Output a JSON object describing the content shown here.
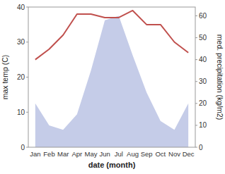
{
  "chart_data": {
    "type": "line",
    "xlabel": "date (month)",
    "ylabel": "max temp (C)",
    "y2label": "med. precipitation (kg/m2)",
    "categories": [
      "Jan",
      "Feb",
      "Mar",
      "Apr",
      "May",
      "Jun",
      "Jul",
      "Aug",
      "Sep",
      "Oct",
      "Nov",
      "Dec"
    ],
    "series": [
      {
        "type": "area",
        "axis": "y2",
        "color": "#c5cce8",
        "values": [
          20,
          10,
          8,
          15,
          35,
          58,
          60,
          42,
          25,
          12,
          8,
          20
        ]
      },
      {
        "type": "line",
        "color": "#c0504d",
        "values": [
          25,
          28,
          32,
          38,
          38,
          37,
          37,
          39,
          35,
          35,
          30,
          27
        ]
      }
    ],
    "ylim": [
      0,
      40
    ],
    "yticks": [
      0,
      10,
      20,
      30,
      40
    ],
    "y2lim": [
      0,
      64
    ],
    "y2ticks": [
      0,
      10,
      20,
      30,
      40,
      50,
      60
    ],
    "grid": false
  }
}
